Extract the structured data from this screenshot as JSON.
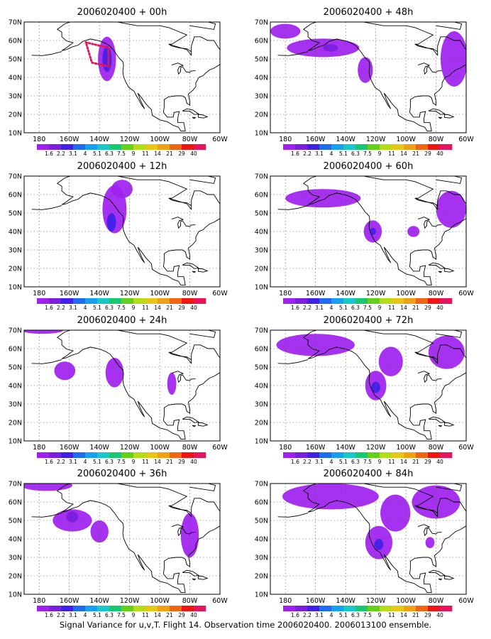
{
  "figure": {
    "footer": "Signal Variance for u,v,T. Flight 14. Observation time 2006020400. 2006013100 ensemble."
  },
  "colorbar": {
    "labels": [
      "1.6",
      "2.2",
      "3.1",
      "4",
      "5.1",
      "6.3",
      "7.5",
      "9",
      "11",
      "14",
      "21",
      "29",
      "40"
    ],
    "colors": [
      "#a020f0",
      "#7a1ee0",
      "#4020e8",
      "#1f6cf0",
      "#18a0f0",
      "#18c8c8",
      "#18c870",
      "#64d018",
      "#b4dc18",
      "#e6c814",
      "#f0a014",
      "#f06414",
      "#f01414",
      "#e6145a"
    ]
  },
  "axes": {
    "y_ticks": [
      "70N",
      "60N",
      "50N",
      "40N",
      "30N",
      "20N",
      "10N"
    ],
    "x_ticks": [
      "180",
      "160W",
      "140W",
      "120W",
      "100W",
      "80W",
      "60W"
    ],
    "lon_range": [
      -190,
      -60
    ],
    "lat_range": [
      10,
      70
    ]
  },
  "chart_data": [
    {
      "type": "heatmap",
      "title": "2006020400 + 00h",
      "blobs": [
        {
          "lon": -135,
          "lat": 50,
          "rx": 6,
          "ry": 12,
          "level": 0
        },
        {
          "lon": -135,
          "lat": 50,
          "rx": 3,
          "ry": 7,
          "level": 2
        }
      ],
      "track": [
        {
          "lon": -149,
          "lat": 59
        },
        {
          "lon": -134,
          "lat": 56
        },
        {
          "lon": -134,
          "lat": 46
        },
        {
          "lon": -145,
          "lat": 48
        }
      ]
    },
    {
      "type": "heatmap",
      "title": "2006020400 + 12h",
      "blobs": [
        {
          "lon": -130,
          "lat": 52,
          "rx": 8,
          "ry": 13,
          "level": 0
        },
        {
          "lon": -125,
          "lat": 63,
          "rx": 7,
          "ry": 5,
          "level": 0
        },
        {
          "lon": -132,
          "lat": 45,
          "rx": 3,
          "ry": 5,
          "level": 2
        }
      ]
    },
    {
      "type": "heatmap",
      "title": "2006020400 + 24h",
      "blobs": [
        {
          "lon": -163,
          "lat": 48,
          "rx": 7,
          "ry": 5,
          "level": 0
        },
        {
          "lon": -130,
          "lat": 47,
          "rx": 6,
          "ry": 8,
          "level": 0
        },
        {
          "lon": -92,
          "lat": 41,
          "rx": 3,
          "ry": 6,
          "level": 0
        },
        {
          "lon": -178,
          "lat": 70,
          "rx": 14,
          "ry": 2,
          "level": 0
        }
      ]
    },
    {
      "type": "heatmap",
      "title": "2006020400 + 36h",
      "blobs": [
        {
          "lon": -158,
          "lat": 50,
          "rx": 13,
          "ry": 6,
          "level": 0
        },
        {
          "lon": -140,
          "lat": 44,
          "rx": 6,
          "ry": 6,
          "level": 0
        },
        {
          "lon": -80,
          "lat": 42,
          "rx": 6,
          "ry": 12,
          "level": 0
        },
        {
          "lon": -175,
          "lat": 69,
          "rx": 17,
          "ry": 3,
          "level": 0
        },
        {
          "lon": -158,
          "lat": 52,
          "rx": 4,
          "ry": 3,
          "level": 1
        }
      ]
    },
    {
      "type": "heatmap",
      "title": "2006020400 + 48h",
      "blobs": [
        {
          "lon": -155,
          "lat": 56,
          "rx": 24,
          "ry": 5,
          "level": 0
        },
        {
          "lon": -127,
          "lat": 44,
          "rx": 5,
          "ry": 7,
          "level": 0
        },
        {
          "lon": -68,
          "lat": 50,
          "rx": 9,
          "ry": 15,
          "level": 0
        },
        {
          "lon": -150,
          "lat": 56,
          "rx": 5,
          "ry": 2,
          "level": 1
        },
        {
          "lon": -180,
          "lat": 65,
          "rx": 10,
          "ry": 4,
          "level": 0
        }
      ]
    },
    {
      "type": "heatmap",
      "title": "2006020400 + 60h",
      "blobs": [
        {
          "lon": -155,
          "lat": 58,
          "rx": 25,
          "ry": 5,
          "level": 0
        },
        {
          "lon": -122,
          "lat": 40,
          "rx": 6,
          "ry": 6,
          "level": 0
        },
        {
          "lon": -95,
          "lat": 40,
          "rx": 4,
          "ry": 3,
          "level": 0
        },
        {
          "lon": -70,
          "lat": 52,
          "rx": 10,
          "ry": 10,
          "level": 0
        },
        {
          "lon": -122,
          "lat": 40,
          "rx": 2,
          "ry": 2,
          "level": 2
        }
      ]
    },
    {
      "type": "heatmap",
      "title": "2006020400 + 72h",
      "blobs": [
        {
          "lon": -160,
          "lat": 62,
          "rx": 26,
          "ry": 6,
          "level": 0
        },
        {
          "lon": -120,
          "lat": 40,
          "rx": 7,
          "ry": 8,
          "level": 0
        },
        {
          "lon": -110,
          "lat": 53,
          "rx": 8,
          "ry": 8,
          "level": 0
        },
        {
          "lon": -73,
          "lat": 58,
          "rx": 12,
          "ry": 9,
          "level": 0
        },
        {
          "lon": -120,
          "lat": 39,
          "rx": 3,
          "ry": 3,
          "level": 2
        }
      ]
    },
    {
      "type": "heatmap",
      "title": "2006020400 + 84h",
      "blobs": [
        {
          "lon": -150,
          "lat": 63,
          "rx": 32,
          "ry": 7,
          "level": 0
        },
        {
          "lon": -118,
          "lat": 38,
          "rx": 9,
          "ry": 9,
          "level": 0
        },
        {
          "lon": -107,
          "lat": 54,
          "rx": 10,
          "ry": 10,
          "level": 0
        },
        {
          "lon": -80,
          "lat": 60,
          "rx": 16,
          "ry": 9,
          "level": 0
        },
        {
          "lon": -84,
          "lat": 38,
          "rx": 3,
          "ry": 3,
          "level": 0
        },
        {
          "lon": -118,
          "lat": 37,
          "rx": 3,
          "ry": 3,
          "level": 2
        }
      ]
    }
  ]
}
